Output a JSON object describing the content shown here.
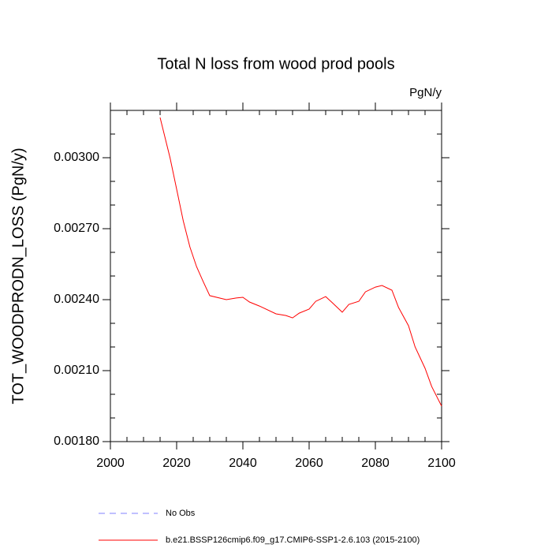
{
  "chart_data": {
    "type": "line",
    "title": "Total N loss from wood prod pools",
    "subtitle": "PgN/y",
    "y_label": "TOT_WOODPRODN_LOSS  (PgN/y)",
    "x": [
      2015,
      2018,
      2020,
      2022,
      2024,
      2026,
      2028,
      2030,
      2035,
      2038,
      2040,
      2042,
      2045,
      2050,
      2053,
      2055,
      2057,
      2060,
      2062,
      2065,
      2067,
      2070,
      2072,
      2075,
      2077,
      2080,
      2082,
      2085,
      2087,
      2090,
      2092,
      2095,
      2097,
      2100
    ],
    "series": [
      {
        "name": "b.e21.BSSP126cmip6.f09_g17.CMIP6-SSP1-2.6.103 (2015-2100)",
        "color": "#ff0000",
        "values": [
          0.00317,
          0.003,
          0.002867,
          0.002733,
          0.002623,
          0.00254,
          0.002477,
          0.002417,
          0.0024,
          0.002407,
          0.00241,
          0.00239,
          0.002373,
          0.00234,
          0.002333,
          0.002323,
          0.002343,
          0.00236,
          0.002393,
          0.002413,
          0.002387,
          0.002347,
          0.00238,
          0.002393,
          0.002433,
          0.002453,
          0.00246,
          0.00244,
          0.002367,
          0.00229,
          0.0022,
          0.00211,
          0.002033,
          0.00195
        ]
      }
    ],
    "legend_extra": {
      "name": "No Obs",
      "color": "#8080ff",
      "dashed": true
    },
    "xlim": [
      2000,
      2100
    ],
    "xticks": [
      2000,
      2020,
      2040,
      2060,
      2080,
      2100
    ],
    "xminorticks": [
      2005,
      2010,
      2015,
      2025,
      2030,
      2035,
      2045,
      2050,
      2055,
      2065,
      2070,
      2075,
      2085,
      2090,
      2095
    ],
    "ylim": [
      0.0018,
      0.0032
    ],
    "yticks": [
      {
        "value": 0.0018,
        "label": "0.00180"
      },
      {
        "value": 0.0021,
        "label": "0.00210"
      },
      {
        "value": 0.0024,
        "label": "0.00240"
      },
      {
        "value": 0.0027,
        "label": "0.00270"
      },
      {
        "value": 0.003,
        "label": "0.00300"
      }
    ],
    "yminorticks": [
      0.0019,
      0.002,
      0.0022,
      0.0023,
      0.0025,
      0.0026,
      0.0028,
      0.0029,
      0.0031
    ],
    "grid": false
  }
}
